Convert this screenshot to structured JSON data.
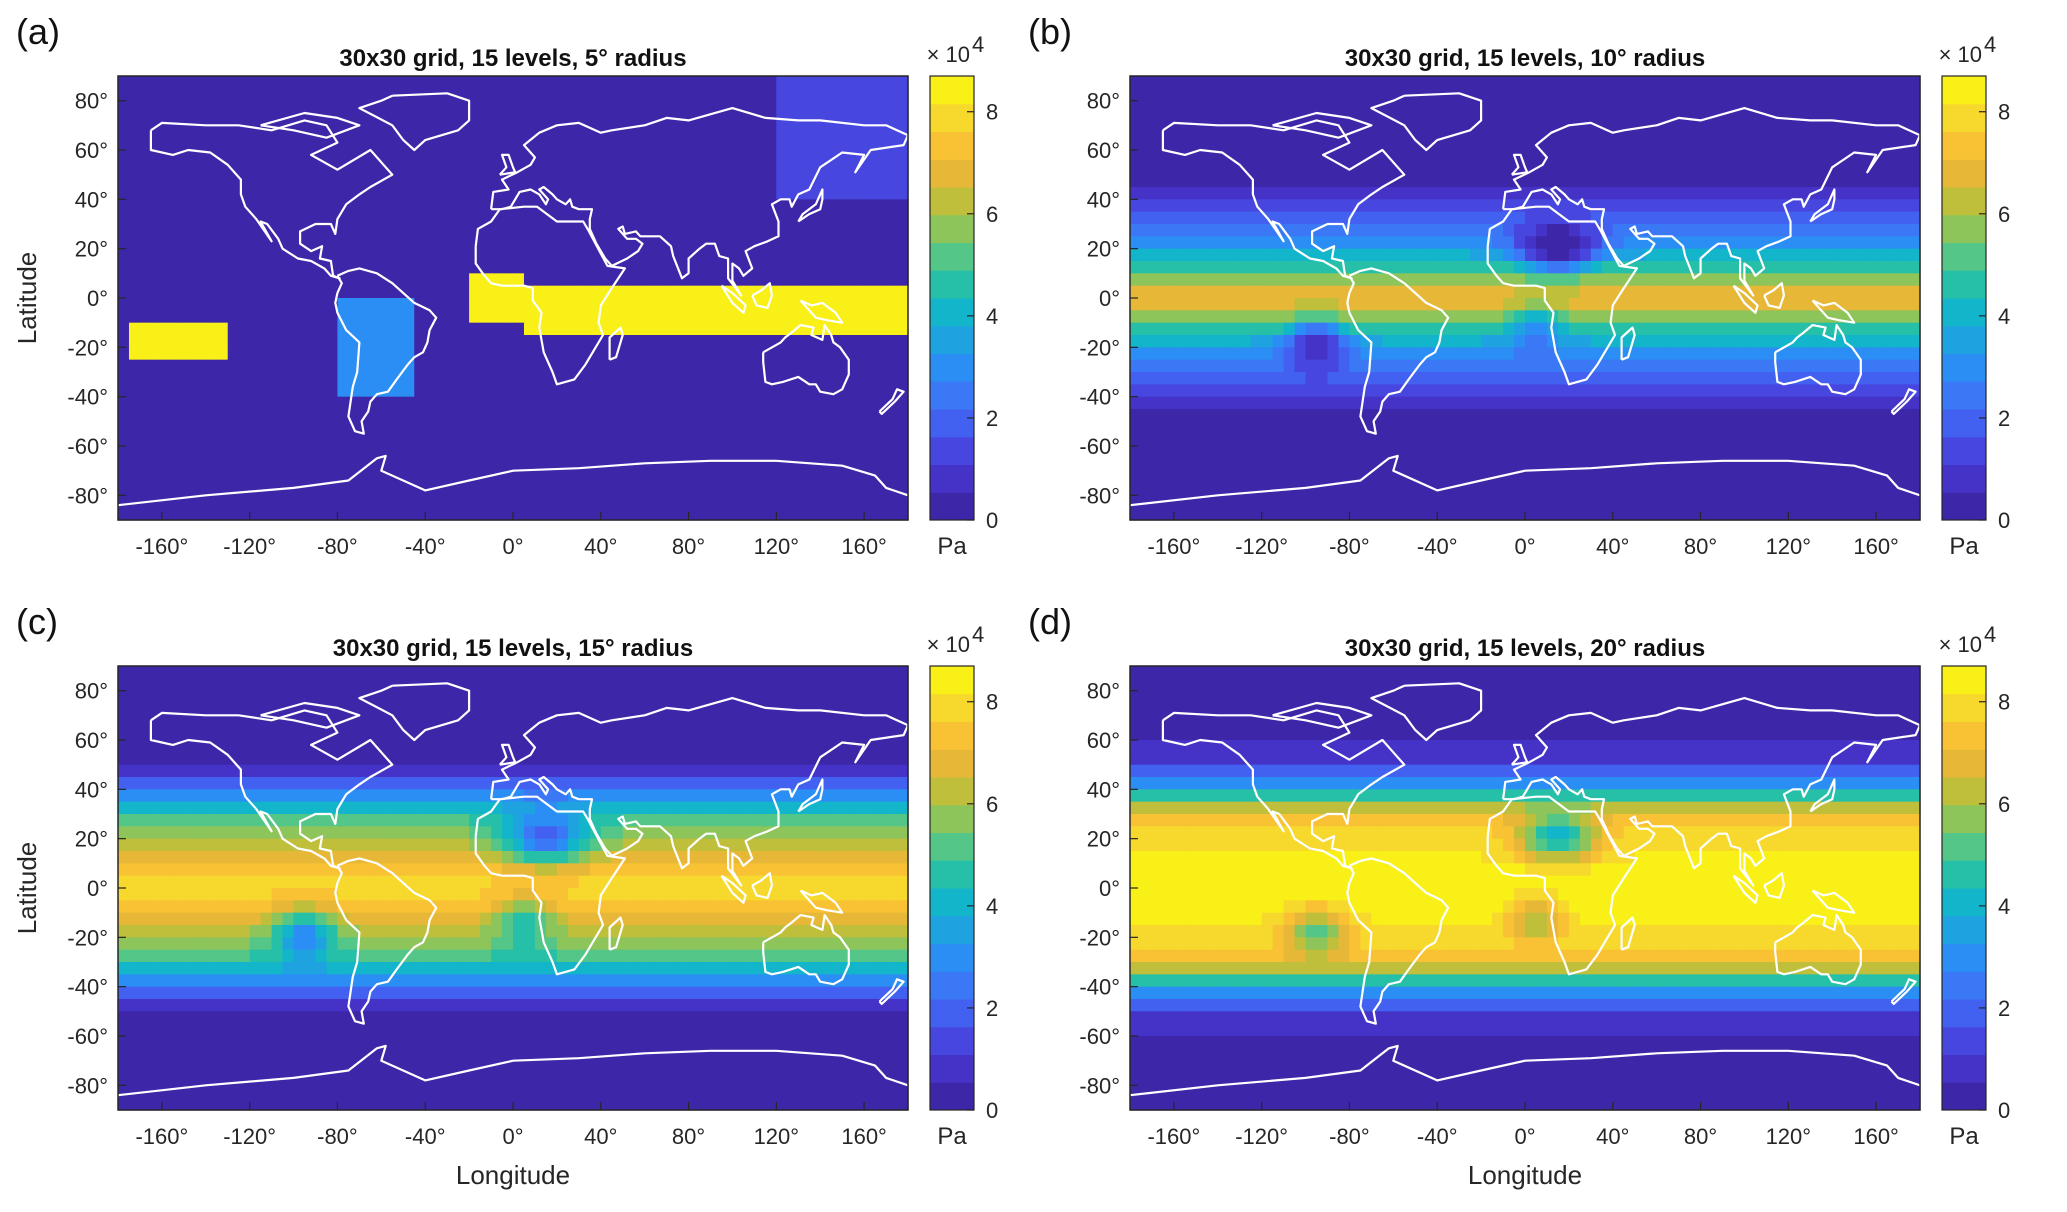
{
  "figure": {
    "xlabel": "Longitude",
    "ylabel": "Latitude",
    "colorbar_unit": "Pa",
    "colorbar_multiplier": "× 10",
    "colorbar_exponent": "4",
    "colormap": [
      "#3e26a8",
      "#4433c6",
      "#4747e0",
      "#4361f0",
      "#3a78f6",
      "#2b8ef4",
      "#1ea3e0",
      "#13b5ca",
      "#26c0a8",
      "#53c688",
      "#8dc55a",
      "#c0bf3c",
      "#e7b838",
      "#f9c234",
      "#f6d92c",
      "#f9f018"
    ]
  },
  "chart_data": [
    {
      "type": "heatmap",
      "panel": "(a)",
      "title": "30x30 grid, 15 levels, 5° radius",
      "radius_deg": 5,
      "xlim": [
        -180,
        180
      ],
      "ylim": [
        -90,
        90
      ],
      "x_ticks": [
        "-160°",
        "-120°",
        "-80°",
        "-40°",
        "0°",
        "40°",
        "80°",
        "120°",
        "160°"
      ],
      "x_tick_values": [
        -160,
        -120,
        -80,
        -40,
        0,
        40,
        80,
        120,
        160
      ],
      "y_ticks": [
        "80°",
        "60°",
        "40°",
        "20°",
        "0°",
        "-20°",
        "-40°",
        "-60°",
        "-80°"
      ],
      "y_tick_values": [
        80,
        60,
        40,
        20,
        0,
        -20,
        -40,
        -60,
        -80
      ],
      "clim": [
        0,
        87000
      ],
      "colorbar_ticks": [
        "0",
        "2",
        "4",
        "6",
        "8"
      ],
      "colorbar_tick_values": [
        0,
        20000,
        40000,
        60000,
        80000
      ]
    },
    {
      "type": "heatmap",
      "panel": "(b)",
      "title": "30x30 grid, 15 levels, 10° radius",
      "radius_deg": 10,
      "xlim": [
        -180,
        180
      ],
      "ylim": [
        -90,
        90
      ],
      "x_ticks": [
        "-160°",
        "-120°",
        "-80°",
        "-40°",
        "0°",
        "40°",
        "80°",
        "120°",
        "160°"
      ],
      "x_tick_values": [
        -160,
        -120,
        -80,
        -40,
        0,
        40,
        80,
        120,
        160
      ],
      "y_ticks": [
        "80°",
        "60°",
        "40°",
        "20°",
        "0°",
        "-20°",
        "-40°",
        "-60°",
        "-80°"
      ],
      "y_tick_values": [
        80,
        60,
        40,
        20,
        0,
        -20,
        -40,
        -60,
        -80
      ],
      "clim": [
        0,
        87000
      ],
      "colorbar_ticks": [
        "0",
        "2",
        "4",
        "6",
        "8"
      ],
      "colorbar_tick_values": [
        0,
        20000,
        40000,
        60000,
        80000
      ]
    },
    {
      "type": "heatmap",
      "panel": "(c)",
      "title": "30x30 grid, 15 levels, 15° radius",
      "radius_deg": 15,
      "xlim": [
        -180,
        180
      ],
      "ylim": [
        -90,
        90
      ],
      "x_ticks": [
        "-160°",
        "-120°",
        "-80°",
        "-40°",
        "0°",
        "40°",
        "80°",
        "120°",
        "160°"
      ],
      "x_tick_values": [
        -160,
        -120,
        -80,
        -40,
        0,
        40,
        80,
        120,
        160
      ],
      "y_ticks": [
        "80°",
        "60°",
        "40°",
        "20°",
        "0°",
        "-20°",
        "-40°",
        "-60°",
        "-80°"
      ],
      "y_tick_values": [
        80,
        60,
        40,
        20,
        0,
        -20,
        -40,
        -60,
        -80
      ],
      "clim": [
        0,
        87000
      ],
      "colorbar_ticks": [
        "0",
        "2",
        "4",
        "6",
        "8"
      ],
      "colorbar_tick_values": [
        0,
        20000,
        40000,
        60000,
        80000
      ]
    },
    {
      "type": "heatmap",
      "panel": "(d)",
      "title": "30x30 grid, 15 levels, 20° radius",
      "radius_deg": 20,
      "xlim": [
        -180,
        180
      ],
      "ylim": [
        -90,
        90
      ],
      "x_ticks": [
        "-160°",
        "-120°",
        "-80°",
        "-40°",
        "0°",
        "40°",
        "80°",
        "120°",
        "160°"
      ],
      "x_tick_values": [
        -160,
        -120,
        -80,
        -40,
        0,
        40,
        80,
        120,
        160
      ],
      "y_ticks": [
        "80°",
        "60°",
        "40°",
        "20°",
        "0°",
        "-20°",
        "-40°",
        "-60°",
        "-80°"
      ],
      "y_tick_values": [
        80,
        60,
        40,
        20,
        0,
        -20,
        -40,
        -60,
        -80
      ],
      "clim": [
        0,
        87000
      ],
      "colorbar_ticks": [
        "0",
        "2",
        "4",
        "6",
        "8"
      ],
      "colorbar_tick_values": [
        0,
        20000,
        40000,
        60000,
        80000
      ]
    }
  ]
}
